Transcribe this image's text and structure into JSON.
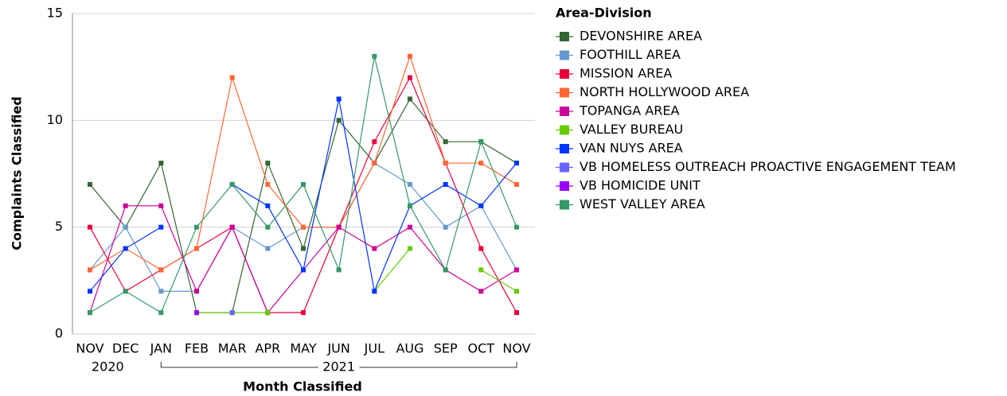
{
  "chart_data": {
    "type": "line",
    "x_label": "Month Classified",
    "y_label": "Complaints Classified",
    "legend_title": "Area-Division",
    "legend_position": "right",
    "grid": true,
    "categories": [
      "NOV",
      "DEC",
      "JAN",
      "FEB",
      "MAR",
      "APR",
      "MAY",
      "JUN",
      "JUL",
      "AUG",
      "SEP",
      "OCT",
      "NOV"
    ],
    "year_groups": [
      {
        "label": "2020",
        "start": 0,
        "end": 1
      },
      {
        "label": "2021",
        "start": 2,
        "end": 12
      }
    ],
    "ylim": [
      0,
      15
    ],
    "yticks": [
      0,
      5,
      10,
      15
    ],
    "series": [
      {
        "name": "DEVONSHIRE AREA",
        "color": "#336633",
        "values": [
          7,
          5,
          8,
          1,
          1,
          8,
          4,
          10,
          8,
          11,
          9,
          9,
          8
        ]
      },
      {
        "name": "FOOTHILL AREA",
        "color": "#6699cc",
        "values": [
          3,
          5,
          2,
          2,
          5,
          4,
          5,
          5,
          8,
          7,
          5,
          6,
          3
        ]
      },
      {
        "name": "MISSION AREA",
        "color": "#e8003a",
        "values": [
          5,
          2,
          3,
          4,
          5,
          1,
          1,
          5,
          9,
          12,
          8,
          4,
          1
        ]
      },
      {
        "name": "NORTH HOLLYWOOD AREA",
        "color": "#ff6633",
        "values": [
          3,
          4,
          3,
          4,
          12,
          7,
          5,
          5,
          8,
          13,
          8,
          8,
          7
        ]
      },
      {
        "name": "TOPANGA AREA",
        "color": "#cc0099",
        "values": [
          1,
          6,
          6,
          2,
          5,
          1,
          3,
          5,
          4,
          5,
          3,
          2,
          3
        ]
      },
      {
        "name": "VALLEY BUREAU",
        "color": "#66cc00",
        "values": [
          null,
          null,
          null,
          1,
          1,
          1,
          null,
          null,
          2,
          4,
          null,
          3,
          2
        ]
      },
      {
        "name": "VAN NUYS AREA",
        "color": "#0033ff",
        "values": [
          2,
          4,
          5,
          null,
          7,
          6,
          3,
          11,
          2,
          6,
          7,
          6,
          8
        ]
      },
      {
        "name": "VB HOMELESS OUTREACH PROACTIVE ENGAGEMENT TEAM",
        "color": "#6666ff",
        "values": [
          null,
          null,
          null,
          null,
          1,
          null,
          null,
          null,
          null,
          null,
          null,
          null,
          null
        ]
      },
      {
        "name": "VB HOMICIDE UNIT",
        "color": "#9900ff",
        "values": [
          null,
          null,
          null,
          1,
          null,
          null,
          null,
          null,
          null,
          null,
          null,
          null,
          null
        ]
      },
      {
        "name": "WEST VALLEY AREA",
        "color": "#339966",
        "values": [
          1,
          2,
          1,
          5,
          7,
          5,
          7,
          3,
          13,
          6,
          3,
          9,
          5
        ]
      }
    ]
  }
}
